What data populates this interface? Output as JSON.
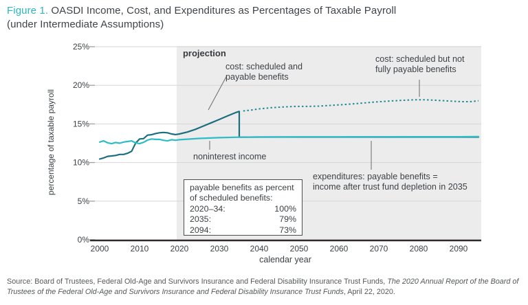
{
  "title": {
    "figure_label": "Figure 1.",
    "line1_rest": " OASDI Income, Cost, and Expenditures as Percentages of Taxable Payroll",
    "line2": "(under Intermediate Assumptions)"
  },
  "colors": {
    "accent_teal": "#2cb4c4",
    "income_line": "#2bbcc6",
    "cost_line": "#1b6e7d",
    "scheduled_cost_line": "#1e8a93",
    "projection_shading": "#ececec",
    "gridline": "#d6d6d6",
    "axis": "#2e2a2b",
    "leader": "#6a6a6a",
    "text_dark": "#3e4246"
  },
  "chart_data": {
    "type": "line",
    "title": "OASDI Income, Cost, and Expenditures as Percentages of Taxable Payroll (under Intermediate Assumptions)",
    "xlabel": "calendar year",
    "ylabel": "percentage of taxable payroll",
    "xlim": [
      1998.8,
      2095.7
    ],
    "ylim": [
      0,
      25
    ],
    "xticks": [
      2000,
      2010,
      2020,
      2030,
      2040,
      2050,
      2060,
      2070,
      2080,
      2090
    ],
    "yticks": [
      {
        "value": 0,
        "label": "0%"
      },
      {
        "value": 5,
        "label": "5%"
      },
      {
        "value": 10,
        "label": "10%"
      },
      {
        "value": 15,
        "label": "15%"
      },
      {
        "value": 20,
        "label": "20%"
      },
      {
        "value": 25,
        "label": "25%"
      }
    ],
    "grid": true,
    "projection_start_year": 2019.3,
    "projection_label": "projection",
    "series": [
      {
        "name": "noninterest income",
        "style": "solid",
        "color": "#2bbcc6",
        "points": [
          [
            2000,
            12.65
          ],
          [
            2001,
            12.8
          ],
          [
            2002,
            12.55
          ],
          [
            2003,
            12.45
          ],
          [
            2004,
            12.6
          ],
          [
            2005,
            12.5
          ],
          [
            2006,
            12.65
          ],
          [
            2007,
            12.72
          ],
          [
            2008,
            12.8
          ],
          [
            2009,
            12.55
          ],
          [
            2010,
            12.45
          ],
          [
            2011,
            12.62
          ],
          [
            2012,
            12.9
          ],
          [
            2013,
            13.05
          ],
          [
            2014,
            13.0
          ],
          [
            2015,
            13.0
          ],
          [
            2016,
            12.88
          ],
          [
            2017,
            12.8
          ],
          [
            2018,
            12.95
          ],
          [
            2019,
            12.88
          ],
          [
            2020,
            12.95
          ],
          [
            2025,
            13.12
          ],
          [
            2030,
            13.22
          ],
          [
            2035,
            13.28
          ],
          [
            2040,
            13.3
          ],
          [
            2050,
            13.32
          ],
          [
            2060,
            13.32
          ],
          [
            2070,
            13.33
          ],
          [
            2080,
            13.34
          ],
          [
            2090,
            13.34
          ],
          [
            2095,
            13.35
          ]
        ]
      },
      {
        "name": "cost: scheduled and payable benefits / expenditures: payable benefits",
        "style": "solid",
        "color": "#1b6e7d",
        "points": [
          [
            2000,
            10.45
          ],
          [
            2001,
            10.6
          ],
          [
            2002,
            10.8
          ],
          [
            2003,
            10.85
          ],
          [
            2004,
            10.92
          ],
          [
            2005,
            11.05
          ],
          [
            2006,
            11.05
          ],
          [
            2007,
            11.2
          ],
          [
            2008,
            11.45
          ],
          [
            2009,
            12.5
          ],
          [
            2010,
            13.05
          ],
          [
            2011,
            13.1
          ],
          [
            2012,
            13.55
          ],
          [
            2013,
            13.6
          ],
          [
            2014,
            13.75
          ],
          [
            2015,
            13.85
          ],
          [
            2016,
            13.9
          ],
          [
            2017,
            13.85
          ],
          [
            2018,
            13.7
          ],
          [
            2019,
            13.62
          ],
          [
            2020,
            13.7
          ],
          [
            2022,
            13.95
          ],
          [
            2024,
            14.3
          ],
          [
            2026,
            14.72
          ],
          [
            2028,
            15.15
          ],
          [
            2030,
            15.58
          ],
          [
            2032,
            16.02
          ],
          [
            2034,
            16.45
          ],
          [
            2035,
            16.62
          ],
          [
            2035,
            13.28
          ],
          [
            2040,
            13.3
          ],
          [
            2050,
            13.3
          ],
          [
            2060,
            13.3
          ],
          [
            2070,
            13.3
          ],
          [
            2080,
            13.3
          ],
          [
            2090,
            13.3
          ],
          [
            2095,
            13.3
          ]
        ]
      },
      {
        "name": "cost: scheduled but not fully payable benefits",
        "style": "dotted",
        "color": "#1e8a93",
        "points": [
          [
            2036,
            16.68
          ],
          [
            2038,
            16.8
          ],
          [
            2040,
            16.95
          ],
          [
            2043,
            17.1
          ],
          [
            2046,
            17.2
          ],
          [
            2049,
            17.27
          ],
          [
            2052,
            17.27
          ],
          [
            2055,
            17.3
          ],
          [
            2058,
            17.4
          ],
          [
            2061,
            17.5
          ],
          [
            2064,
            17.62
          ],
          [
            2067,
            17.75
          ],
          [
            2070,
            17.87
          ],
          [
            2073,
            17.97
          ],
          [
            2076,
            18.06
          ],
          [
            2079,
            18.12
          ],
          [
            2082,
            18.12
          ],
          [
            2085,
            18.04
          ],
          [
            2088,
            17.95
          ],
          [
            2091,
            17.88
          ],
          [
            2093,
            17.88
          ],
          [
            2095,
            18.0
          ]
        ]
      }
    ],
    "annotations": [
      {
        "id": "cost-scheduled-payable",
        "lines": [
          "cost: scheduled and",
          "payable benefits"
        ]
      },
      {
        "id": "cost-not-fully-payable",
        "lines": [
          "cost: scheduled but not",
          "fully payable benefits"
        ]
      },
      {
        "id": "noninterest-income",
        "lines": [
          "noninterest income"
        ]
      },
      {
        "id": "expenditures",
        "lines": [
          "expenditures: payable benefits =",
          "income after trust fund depletion in 2035"
        ]
      }
    ],
    "info_box": {
      "heading_lines": [
        "payable benefits as percent",
        "of scheduled benefits:"
      ],
      "rows": [
        {
          "label": "2020–34:",
          "value": "100%"
        },
        {
          "label": "2035:",
          "value": "79%"
        },
        {
          "label": "2094:",
          "value": "73%"
        }
      ]
    }
  },
  "source": {
    "prefix": "Source: Board of Trustees, Federal Old-Age and Survivors Insurance and Federal Disability Insurance Trust Funds, ",
    "italic": "The 2020 Annual Report of the Board of Trustees of the Federal Old-Age and Survivors Insurance and Federal Disability Insurance Trust Funds",
    "suffix": ", April 22, 2020."
  }
}
